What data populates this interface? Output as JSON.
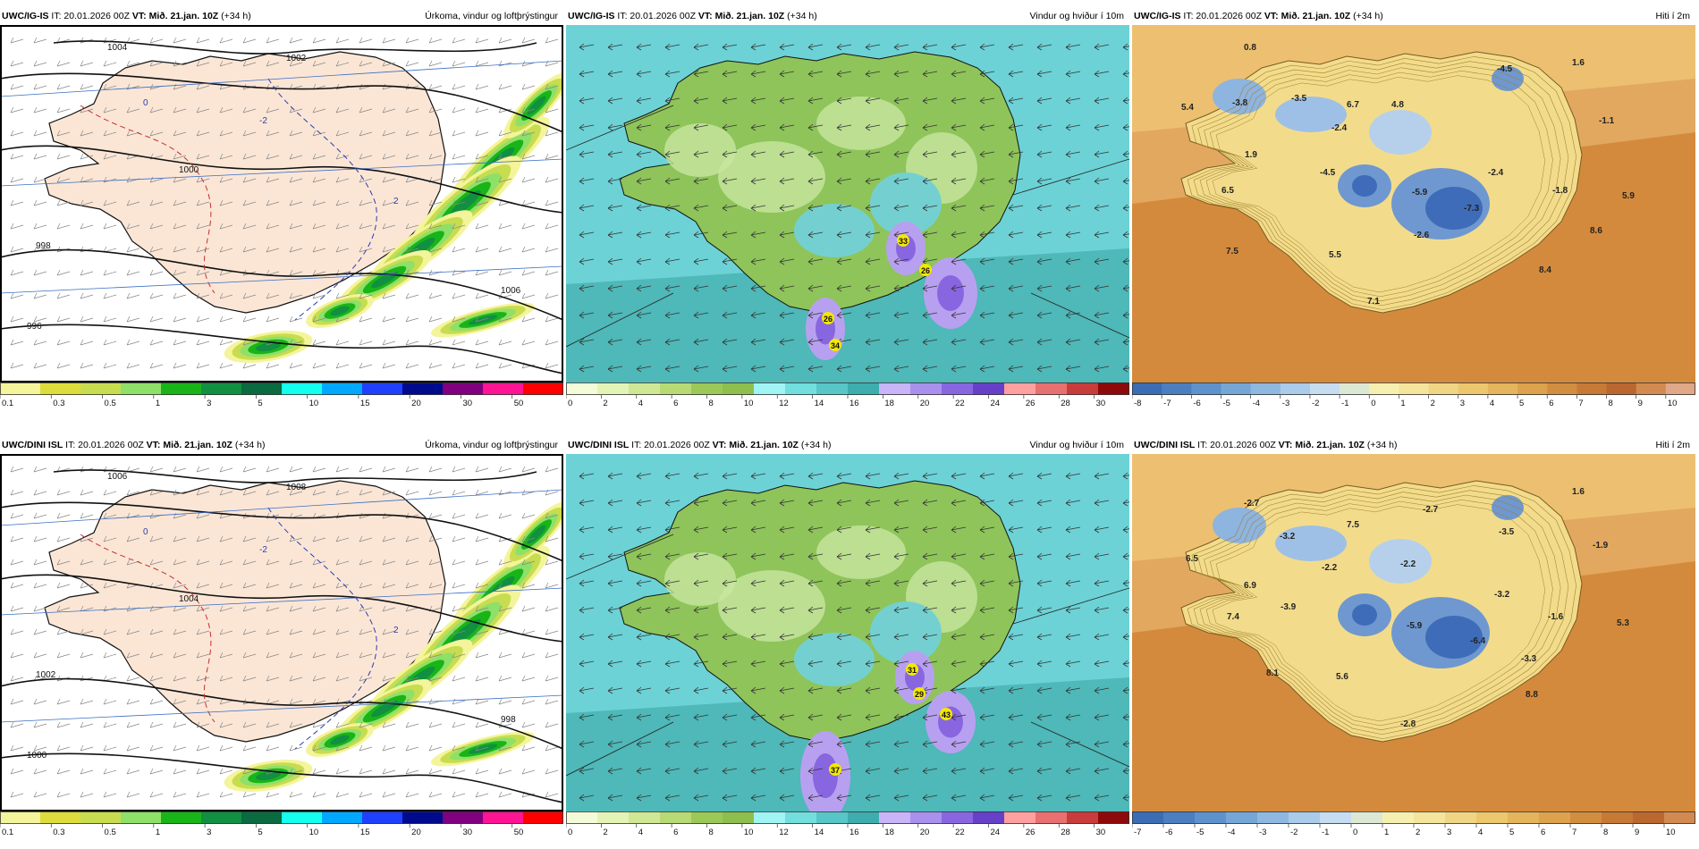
{
  "colors": {
    "precip": [
      "#f4f49a",
      "#dcdc3c",
      "#c8dc50",
      "#8ee068",
      "#18b418",
      "#109040",
      "#0a6a40",
      "#14ffee",
      "#00a8ff",
      "#2040ff",
      "#000a8c",
      "#800080",
      "#ff1493",
      "#ff0000"
    ],
    "wind": [
      "#f4fbd8",
      "#e4f3b6",
      "#d0e896",
      "#b8da74",
      "#9cc858",
      "#8ebf4e",
      "#a0f4f4",
      "#72dede",
      "#58c6c6",
      "#3eadad",
      "#c8b4f6",
      "#a890ec",
      "#8866e0",
      "#6640c8",
      "#ffa0a0",
      "#e87070",
      "#c83c3c",
      "#8e0a0a"
    ],
    "temp": [
      "#3c6cb4",
      "#4c7ec0",
      "#5e92cc",
      "#76a6d6",
      "#8eb8e0",
      "#aacbea",
      "#c6dcf0",
      "#dce8d4",
      "#f6f0b0",
      "#f4e49c",
      "#f0d684",
      "#ecc76e",
      "#e4b55c",
      "#dca24c",
      "#d28e40",
      "#c67a36",
      "#ba6830",
      "#d28a50",
      "#e0a888"
    ],
    "land_precip": "#fbe6d6",
    "sea_precip": "#ffffff",
    "sea_wind": "#6cd2d6",
    "land_wind": "#8ec45a",
    "sea_temp": "#d48a3c",
    "land_temp": "#f2dc8c"
  },
  "rows": [
    {
      "panels": [
        {
          "model": "UWC/IG-IS",
          "it": "IT: 20.01.2026 00Z",
          "vt_label": "VT:",
          "vt": "Mið. 21.jan. 10Z",
          "lead": "(+34 h)",
          "field": "Úrkoma, vindur og loftþrýstingur",
          "kind": "precip",
          "colorbar_labels": [
            "0.1",
            "0.3",
            "0.5",
            "1",
            "3",
            "5",
            "10",
            "15",
            "20",
            "30",
            "50"
          ],
          "map_labels": [
            "1004",
            "1002",
            "1000",
            "998",
            "996",
            "1006",
            "-2",
            "0",
            "2"
          ]
        },
        {
          "model": "UWC/IG-IS",
          "it": "IT: 20.01.2026 00Z",
          "vt_label": "VT:",
          "vt": "Mið. 21.jan. 10Z",
          "lead": "(+34 h)",
          "field": "Vindur og hviður í 10m",
          "kind": "wind",
          "colorbar_labels": [
            "0",
            "2",
            "4",
            "6",
            "8",
            "10",
            "12",
            "14",
            "16",
            "18",
            "20",
            "22",
            "24",
            "26",
            "28",
            "30"
          ],
          "map_labels": [
            "33",
            "26",
            "26",
            "34"
          ]
        },
        {
          "model": "UWC/IG-IS",
          "it": "IT: 20.01.2026 00Z",
          "vt_label": "VT:",
          "vt": "Mið. 21.jan. 10Z",
          "lead": "(+34 h)",
          "field": "Hiti í 2m",
          "kind": "temp",
          "colorbar_labels": [
            "-8",
            "-7",
            "-6",
            "-5",
            "-4",
            "-3",
            "-2",
            "-1",
            "0",
            "1",
            "2",
            "3",
            "4",
            "5",
            "6",
            "7",
            "8",
            "9",
            "10"
          ],
          "map_labels": [
            "0.8",
            "-4.5",
            "1.6",
            "5.4",
            "-3.8",
            "-3.5",
            "6.7",
            "4.8",
            "-1.1",
            "-2.4",
            "1.9",
            "-4.5",
            "-2.4",
            "6.5",
            "-5.9",
            "-1.8",
            "5.9",
            "-7.3",
            "-2.6",
            "8.6",
            "7.5",
            "5.5",
            "8.4",
            "7.1"
          ]
        }
      ]
    },
    {
      "panels": [
        {
          "model": "UWC/DINI ISL",
          "it": "IT: 20.01.2026 00Z",
          "vt_label": "VT:",
          "vt": "Mið. 21.jan. 10Z",
          "lead": "(+34 h)",
          "field": "Úrkoma, vindur og loftþrýstingur",
          "kind": "precip",
          "colorbar_labels": [
            "0.1",
            "0.3",
            "0.5",
            "1",
            "3",
            "5",
            "10",
            "15",
            "20",
            "30",
            "50"
          ],
          "map_labels": [
            "1006",
            "1008",
            "1004",
            "1002",
            "1000",
            "998",
            "-2",
            "0",
            "2"
          ]
        },
        {
          "model": "UWC/DINI ISL",
          "it": "IT: 20.01.2026 00Z",
          "vt_label": "VT:",
          "vt": "Mið. 21.jan. 10Z",
          "lead": "(+34 h)",
          "field": "Vindur og hviður í 10m",
          "kind": "wind",
          "colorbar_labels": [
            "0",
            "2",
            "4",
            "6",
            "8",
            "10",
            "12",
            "14",
            "16",
            "18",
            "20",
            "22",
            "24",
            "26",
            "28",
            "30"
          ],
          "map_labels": [
            "31",
            "29",
            "43",
            "37"
          ]
        },
        {
          "model": "UWC/DINI ISL",
          "it": "IT: 20.01.2026 00Z",
          "vt_label": "VT:",
          "vt": "Mið. 21.jan. 10Z",
          "lead": "(+34 h)",
          "field": "Hiti í 2m",
          "kind": "temp",
          "colorbar_labels": [
            "-7",
            "-6",
            "-5",
            "-4",
            "-3",
            "-2",
            "-1",
            "0",
            "1",
            "2",
            "3",
            "4",
            "5",
            "6",
            "7",
            "8",
            "9",
            "10"
          ],
          "map_labels": [
            "-2.7",
            "1.6",
            "-2.7",
            "7.5",
            "-3.2",
            "-3.5",
            "-1.9",
            "6.5",
            "-2.2",
            "-2.2",
            "6.9",
            "-3.9",
            "-3.2",
            "7.4",
            "-5.9",
            "-1.6",
            "5.3",
            "-6.4",
            "-3.3",
            "8.1",
            "5.6",
            "8.8",
            "-2.8"
          ]
        }
      ]
    }
  ]
}
